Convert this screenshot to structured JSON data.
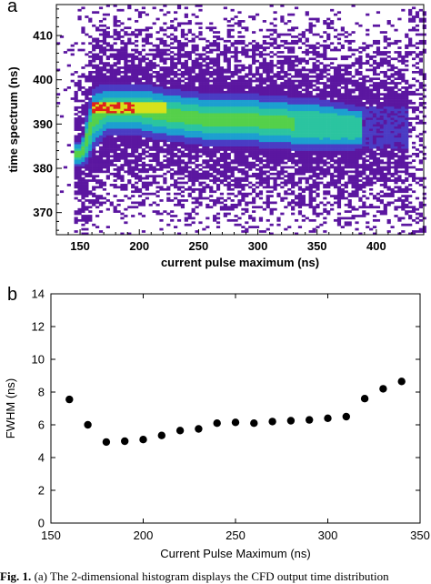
{
  "panel_a_letter": "a",
  "panel_b_letter": "b",
  "caption": {
    "prefix": "Fig. 1.",
    "text": "(a) The 2-dimensional histogram displays the CFD output time distribution"
  },
  "chart_data": [
    {
      "type": "heatmap",
      "panel": "a",
      "xlabel": "current pulse maximum (ns)",
      "ylabel": "time spectrum (ns)",
      "xlim": [
        130,
        440
      ],
      "ylim": [
        365,
        417
      ],
      "xticks": [
        150,
        200,
        250,
        300,
        350,
        400
      ],
      "yticks": [
        370,
        380,
        390,
        400,
        410
      ],
      "ridge": {
        "description_free_points": true,
        "x": [
          150,
          155,
          160,
          170,
          200,
          220,
          250,
          300,
          350,
          380
        ],
        "center_y": [
          383,
          387,
          391,
          393,
          393,
          392,
          391,
          390.5,
          389.5,
          389
        ],
        "width_y": [
          3,
          6,
          7,
          6,
          6,
          6,
          6,
          6,
          6,
          5
        ]
      },
      "peak_region": {
        "x": [
          160,
          220
        ],
        "y": [
          392.5,
          394.5
        ]
      },
      "colors": {
        "sparse": "#5b16a0",
        "low": "#4a3cc4",
        "mid_low": "#1c9fd0",
        "mid": "#2bc4a0",
        "mid_high": "#55d04a",
        "high": "#d6e21a",
        "peak": "#e0201c"
      }
    },
    {
      "type": "scatter",
      "panel": "b",
      "xlabel": "Current Pulse Maximum (ns)",
      "ylabel": "FWHM (ns)",
      "xlim": [
        150,
        350
      ],
      "ylim": [
        0,
        14
      ],
      "xticks": [
        150,
        200,
        250,
        300,
        350
      ],
      "yticks": [
        0,
        2,
        4,
        6,
        8,
        10,
        12,
        14
      ],
      "x": [
        160,
        170,
        180,
        190,
        200,
        210,
        220,
        230,
        240,
        250,
        260,
        270,
        280,
        290,
        300,
        310,
        320,
        330,
        340
      ],
      "y": [
        7.55,
        6.0,
        4.95,
        5.0,
        5.1,
        5.35,
        5.65,
        5.75,
        6.1,
        6.15,
        6.1,
        6.2,
        6.25,
        6.3,
        6.4,
        6.5,
        7.6,
        8.2,
        8.65
      ],
      "marker_color": "#000000"
    }
  ]
}
